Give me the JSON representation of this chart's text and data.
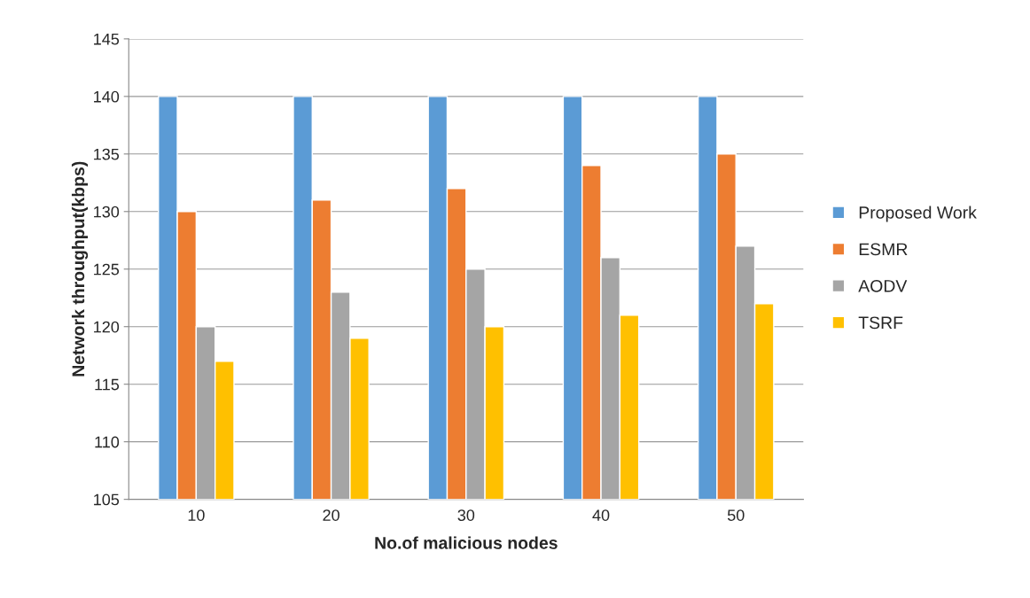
{
  "chart_data": {
    "type": "bar",
    "xlabel": "No.of malicious nodes",
    "ylabel": "Network throughput(kbps)",
    "categories": [
      "10",
      "20",
      "30",
      "40",
      "50"
    ],
    "series": [
      {
        "name": "Proposed Work",
        "color": "#5b9bd5",
        "values": [
          140,
          140,
          140,
          140,
          140
        ]
      },
      {
        "name": "ESMR",
        "color": "#ed7d31",
        "values": [
          130,
          131,
          132,
          134,
          135
        ]
      },
      {
        "name": "AODV",
        "color": "#a5a5a5",
        "values": [
          120,
          123,
          125,
          126,
          127
        ]
      },
      {
        "name": "TSRF",
        "color": "#ffc000",
        "values": [
          117,
          119,
          120,
          121,
          122
        ]
      }
    ],
    "ylim": [
      105,
      145
    ],
    "yticks": [
      105,
      110,
      115,
      120,
      125,
      130,
      135,
      140,
      145
    ],
    "grid": "y",
    "legend": "right"
  }
}
